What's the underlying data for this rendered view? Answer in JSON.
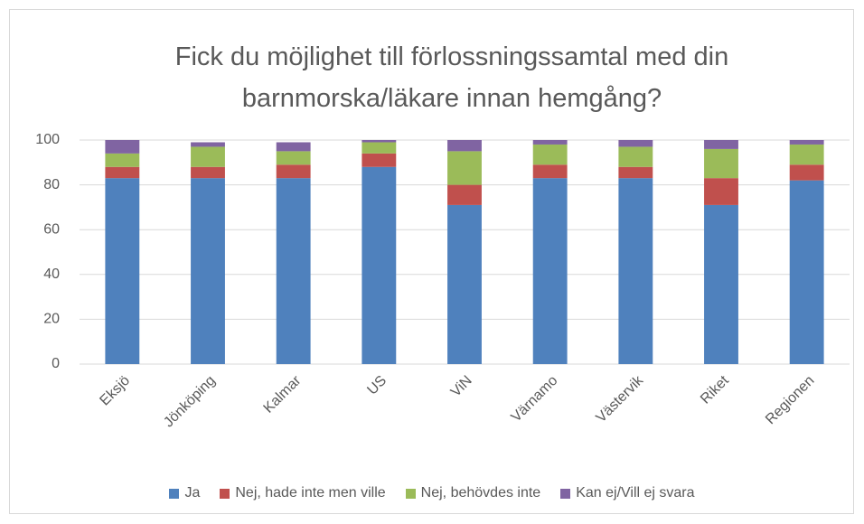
{
  "chart_data": {
    "type": "stacked_bar",
    "title": "Fick du möjlighet till förlossningssamtal med din barnmorska/läkare innan hemgång?",
    "categories": [
      "Eksjö",
      "Jönköping",
      "Kalmar",
      "US",
      "ViN",
      "Värnamo",
      "Västervik",
      "Riket",
      "Regionen"
    ],
    "series": [
      {
        "name": "Ja",
        "color": "#4f81bd",
        "values": [
          83,
          83,
          83,
          88,
          71,
          83,
          83,
          71,
          82
        ]
      },
      {
        "name": "Nej, hade inte men ville",
        "color": "#c0504d",
        "values": [
          5,
          5,
          6,
          6,
          9,
          6,
          5,
          12,
          7
        ]
      },
      {
        "name": "Nej, behövdes inte",
        "color": "#9bbb59",
        "values": [
          6,
          9,
          6,
          5,
          15,
          9,
          9,
          13,
          9
        ]
      },
      {
        "name": "Kan ej/Vill ej svara",
        "color": "#8064a2",
        "values": [
          6,
          2,
          4,
          1,
          5,
          2,
          3,
          4,
          2
        ]
      }
    ],
    "ylim": [
      0,
      100
    ],
    "yticks": [
      0,
      20,
      40,
      60,
      80,
      100
    ],
    "grid": true,
    "legend": "bottom"
  }
}
